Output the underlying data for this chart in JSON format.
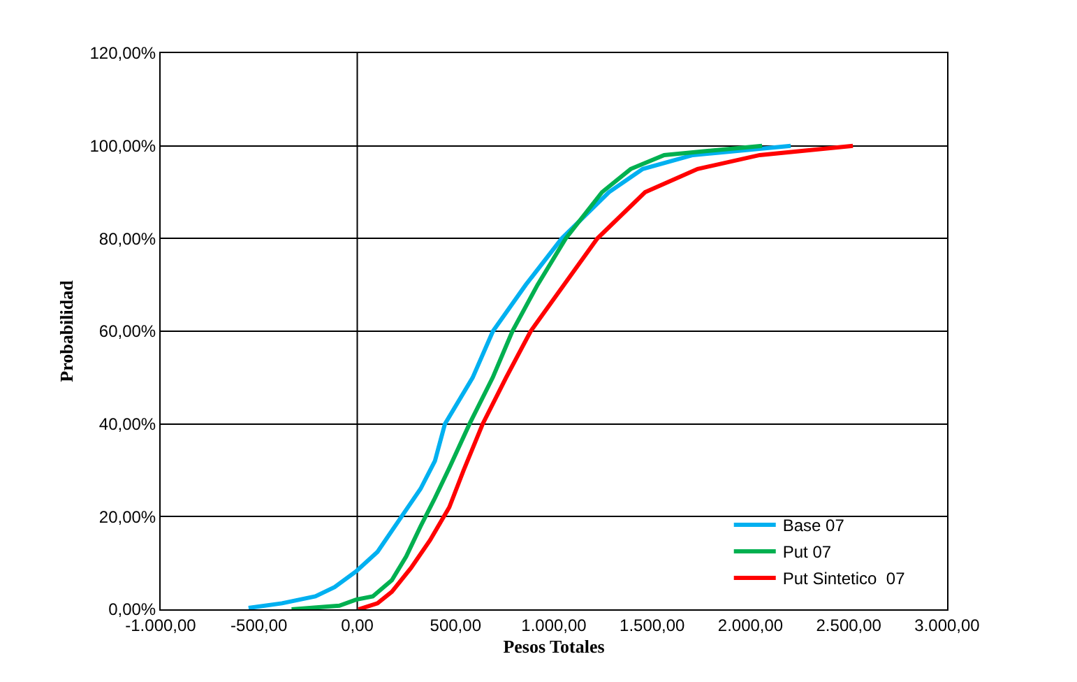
{
  "chart_data": {
    "type": "line",
    "xlabel": "Pesos Totales",
    "ylabel": "Probabilidad",
    "xlim": [
      -1000,
      3000
    ],
    "xticks": [
      {
        "value": -1000,
        "label": "-1.000,00"
      },
      {
        "value": -500,
        "label": "-500,00"
      },
      {
        "value": 0,
        "label": "0,00"
      },
      {
        "value": 500,
        "label": "500,00"
      },
      {
        "value": 1000,
        "label": "1.000,00"
      },
      {
        "value": 1500,
        "label": "1.500,00"
      },
      {
        "value": 2000,
        "label": "2.000,00"
      },
      {
        "value": 2500,
        "label": "2.500,00"
      },
      {
        "value": 3000,
        "label": "3.000,00"
      }
    ],
    "ylim": [
      0,
      120
    ],
    "yticks": [
      {
        "value": 0,
        "label": "0,00%"
      },
      {
        "value": 20,
        "label": "20,00%"
      },
      {
        "value": 40,
        "label": "40,00%"
      },
      {
        "value": 60,
        "label": "60,00%"
      },
      {
        "value": 80,
        "label": "80,00%"
      },
      {
        "value": 100,
        "label": "100,00%"
      },
      {
        "value": 120,
        "label": "120,00%"
      }
    ],
    "grid": "y",
    "legend": "bottom right",
    "marker": "none",
    "line_style": "solid",
    "ref_lines": [
      {
        "axis": "x",
        "value": 0,
        "color": "#000000"
      }
    ],
    "series": [
      {
        "name": "Base 07",
        "color": "#00b0f0",
        "x": [
          -553,
          -383,
          -213,
          -115,
          -6,
          103,
          225,
          322,
          395,
          446,
          587,
          690,
          857,
          1040,
          1280,
          1452,
          1707,
          2205
        ],
        "values": [
          0.3,
          1.3,
          2.8,
          4.8,
          8.2,
          12.4,
          20,
          26,
          32,
          40,
          50,
          60,
          70,
          80,
          90,
          95,
          98,
          100
        ]
      },
      {
        "name": "Put 07",
        "color": "#00b050",
        "x": [
          -334,
          -91,
          -6,
          79,
          176,
          249,
          322,
          395,
          468,
          571,
          689,
          789,
          917,
          1060,
          1245,
          1391,
          1561,
          2059
        ],
        "values": [
          0,
          0.8,
          2.1,
          2.8,
          6.3,
          11.4,
          17.9,
          24,
          30.5,
          40,
          50,
          60,
          70,
          80,
          90,
          95,
          98,
          100
        ]
      },
      {
        "name": "Put Sintetico  07",
        "color": "#ff0000",
        "x": [
          6,
          103,
          176,
          273,
          370,
          468,
          541,
          638,
          757,
          882,
          1051,
          1221,
          1464,
          1731,
          2047,
          2521
        ],
        "values": [
          0,
          1.3,
          3.8,
          8.9,
          14.9,
          22,
          30,
          40,
          50,
          60,
          70,
          80,
          90,
          95,
          98,
          100
        ]
      }
    ]
  }
}
